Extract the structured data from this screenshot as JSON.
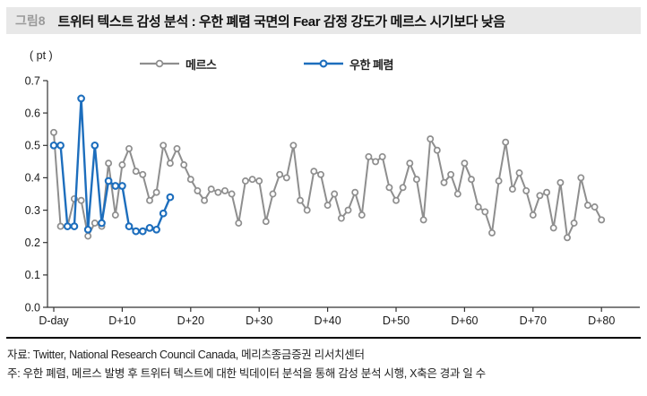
{
  "figure": {
    "number_label": "그림8",
    "title": "트위터 텍스트 감성 분석 : 우한 폐렴 국면의 Fear 감정 강도가 메르스 시기보다 낮음"
  },
  "chart_data": {
    "type": "line",
    "title": "",
    "xlabel": "",
    "ylabel": "( pt )",
    "grid": false,
    "legend_position": "top",
    "ylim": [
      0.0,
      0.7
    ],
    "y_ticks": [
      "0.0",
      "0.1",
      "0.2",
      "0.3",
      "0.4",
      "0.5",
      "0.6",
      "0.7"
    ],
    "x_tick_labels": [
      "D-day",
      "D+10",
      "D+20",
      "D+30",
      "D+40",
      "D+50",
      "D+60",
      "D+70",
      "D+80"
    ],
    "x_tick_days": [
      0,
      10,
      20,
      30,
      40,
      50,
      60,
      70,
      80
    ],
    "axis_color": "#333333",
    "series": [
      {
        "name": "메르스",
        "color": "#8e8e8e",
        "start_day": 0,
        "step_days": 1,
        "values": [
          0.54,
          0.25,
          0.25,
          0.335,
          0.33,
          0.22,
          0.26,
          0.25,
          0.445,
          0.285,
          0.44,
          0.49,
          0.42,
          0.41,
          0.33,
          0.355,
          0.5,
          0.445,
          0.49,
          0.44,
          0.395,
          0.36,
          0.33,
          0.365,
          0.355,
          0.36,
          0.35,
          0.26,
          0.39,
          0.395,
          0.39,
          0.265,
          0.35,
          0.41,
          0.4,
          0.5,
          0.33,
          0.3,
          0.42,
          0.41,
          0.315,
          0.35,
          0.275,
          0.3,
          0.355,
          0.285,
          0.465,
          0.45,
          0.465,
          0.37,
          0.33,
          0.37,
          0.445,
          0.395,
          0.27,
          0.52,
          0.485,
          0.385,
          0.41,
          0.35,
          0.445,
          0.395,
          0.31,
          0.295,
          0.23,
          0.39,
          0.51,
          0.365,
          0.415,
          0.36,
          0.285,
          0.345,
          0.355,
          0.245,
          0.385,
          0.215,
          0.26,
          0.4,
          0.315,
          0.31,
          0.27
        ]
      },
      {
        "name": "우한 폐렴",
        "color": "#1d6ebd",
        "start_day": 0,
        "step_days": 1,
        "values": [
          0.5,
          0.5,
          0.25,
          0.25,
          0.645,
          0.24,
          0.5,
          0.26,
          0.39,
          0.375,
          0.375,
          0.25,
          0.235,
          0.235,
          0.245,
          0.24,
          0.29,
          0.34
        ]
      }
    ]
  },
  "notes": {
    "source": "자료: Twitter, National Research Council Canada, 메리츠종금증권 리서치센터",
    "method": "주: 우한 폐렴, 메르스 발병 후 트위터 텍스트에 대한 빅데이터 분석을 통해 감성 분석 시행, X축은 경과 일 수"
  }
}
